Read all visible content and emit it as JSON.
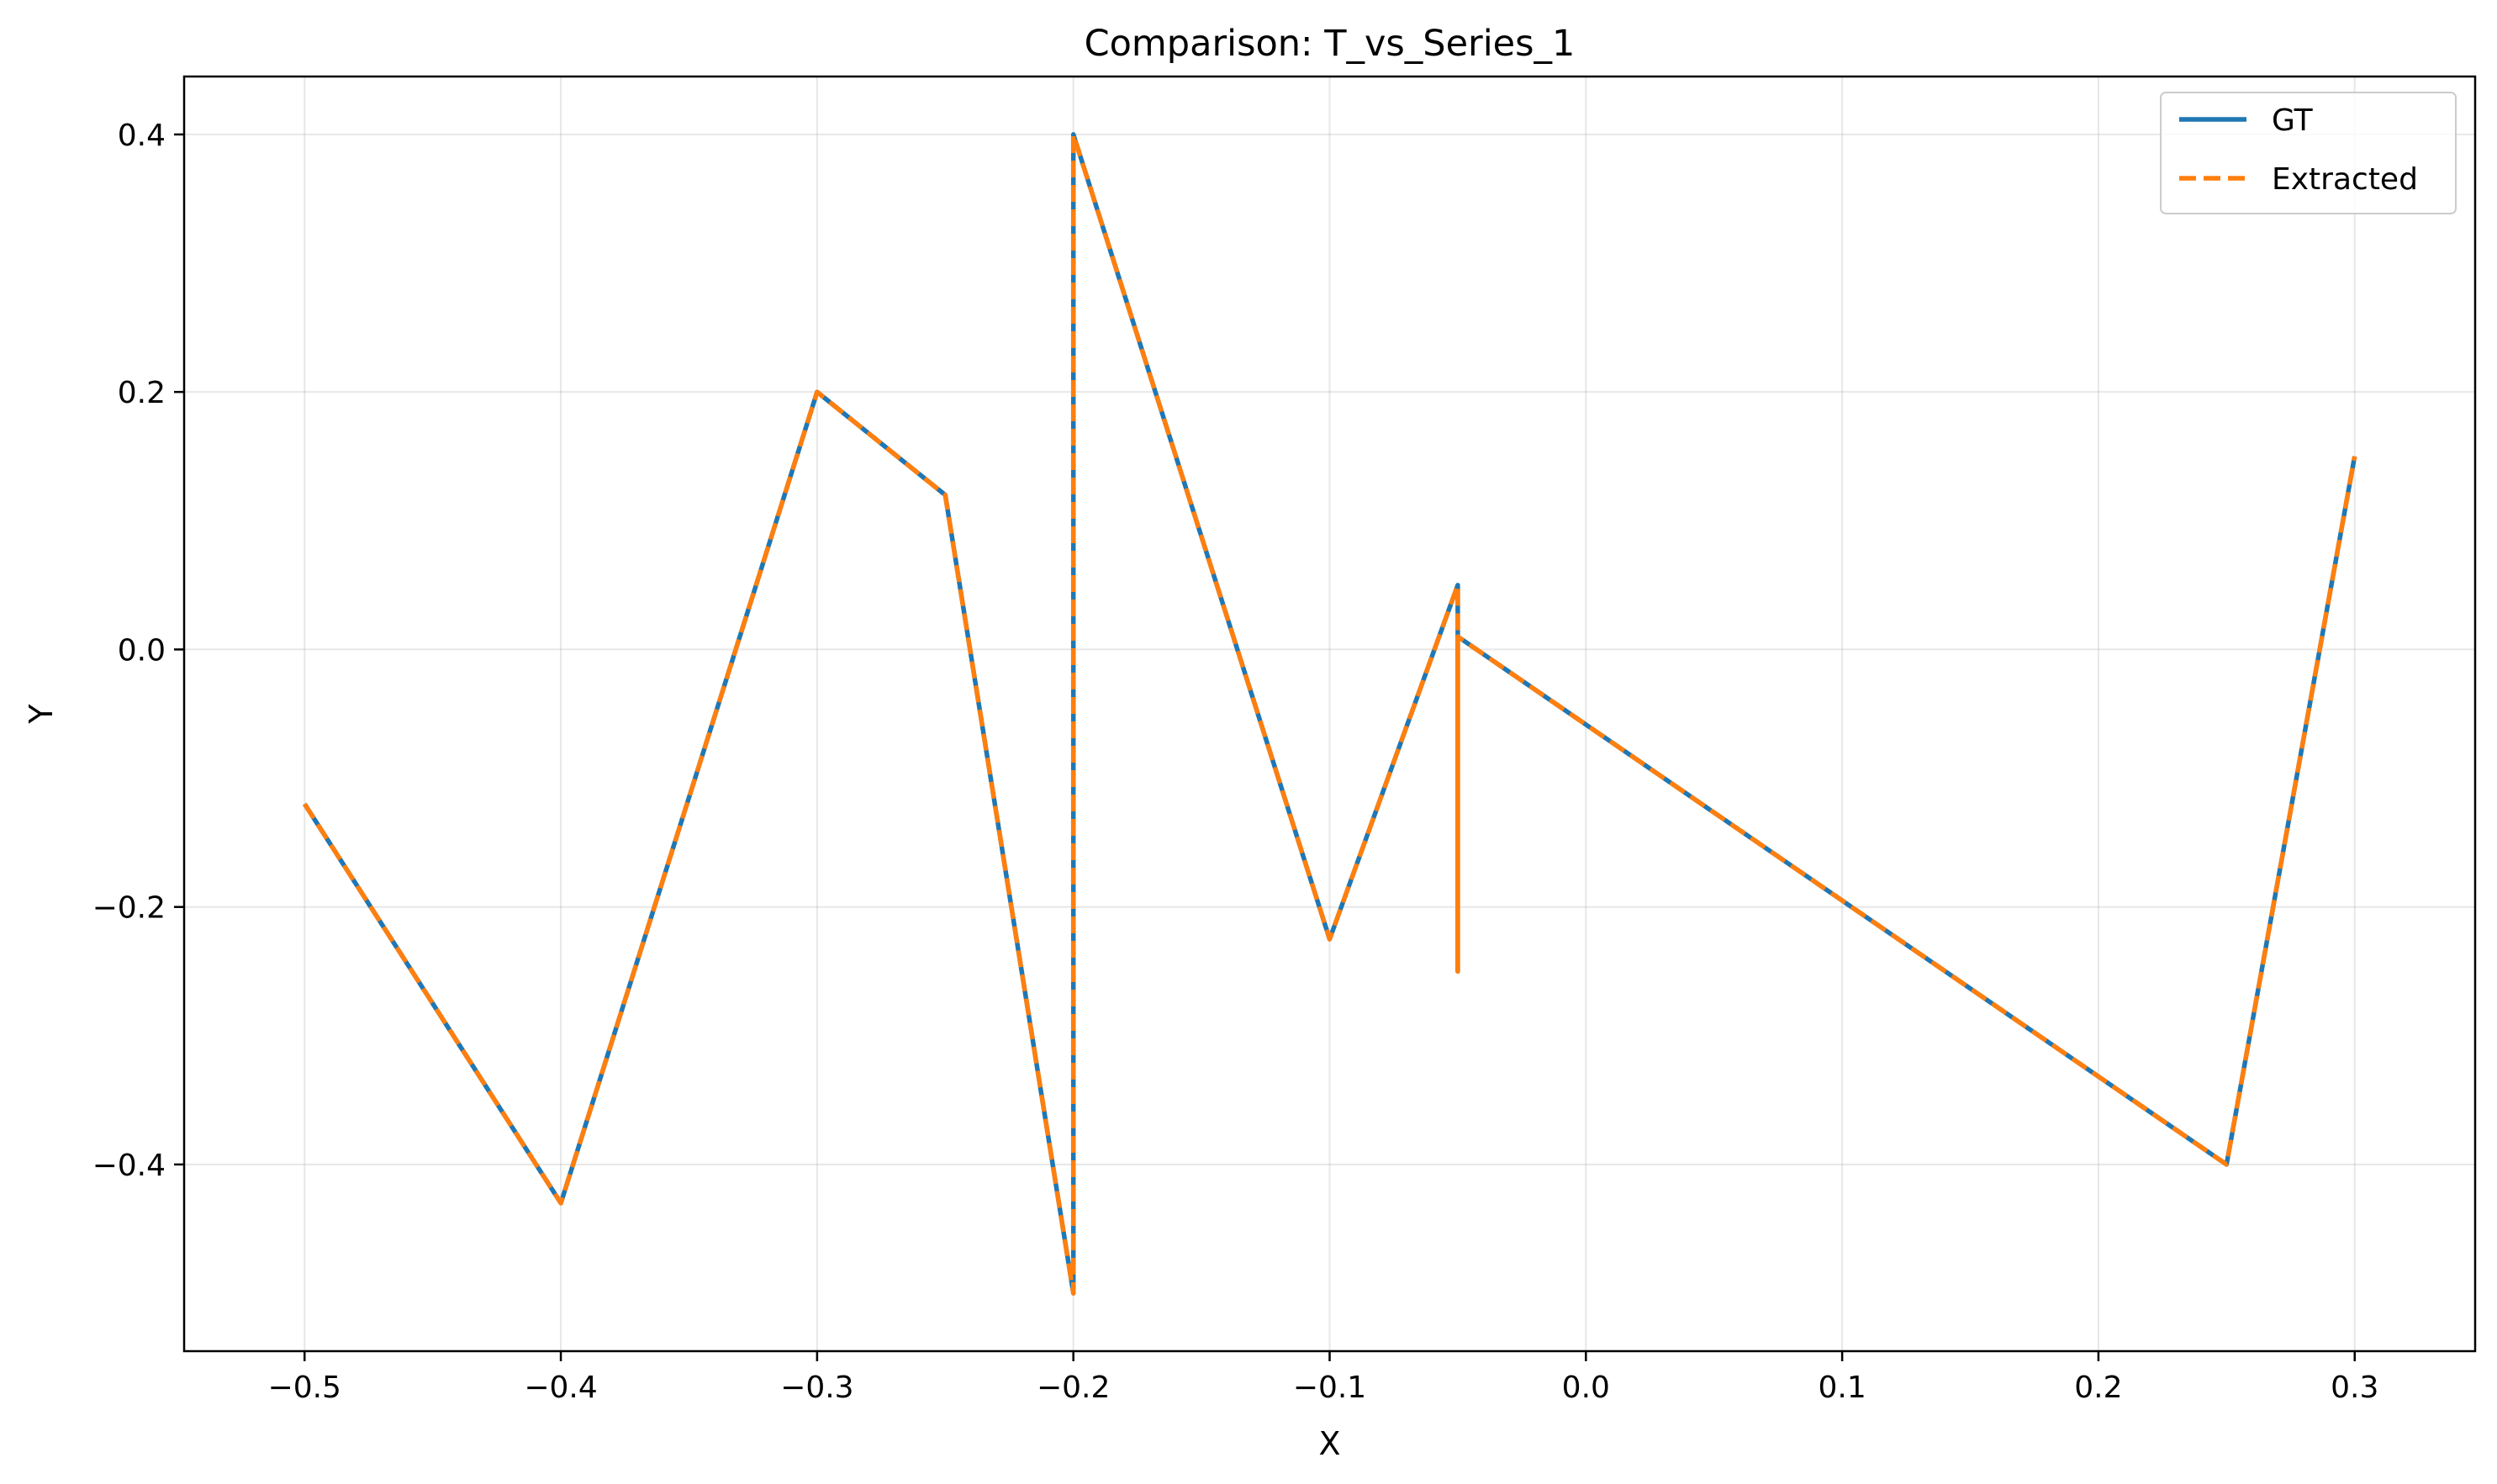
{
  "chart_data": {
    "type": "line",
    "title": "Comparison: T_vs_Series_1",
    "xlabel": "X",
    "ylabel": "Y",
    "xlim": [
      -0.547,
      0.347
    ],
    "ylim": [
      -0.545,
      0.445
    ],
    "xticks": [
      {
        "value": -0.5,
        "label": "−0.5"
      },
      {
        "value": -0.4,
        "label": "−0.4"
      },
      {
        "value": -0.3,
        "label": "−0.3"
      },
      {
        "value": -0.2,
        "label": "−0.2"
      },
      {
        "value": -0.1,
        "label": "−0.1"
      },
      {
        "value": 0.0,
        "label": "0.0"
      },
      {
        "value": 0.1,
        "label": "0.1"
      },
      {
        "value": 0.2,
        "label": "0.2"
      },
      {
        "value": 0.3,
        "label": "0.3"
      }
    ],
    "yticks": [
      {
        "value": -0.4,
        "label": "−0.4"
      },
      {
        "value": -0.2,
        "label": "−0.2"
      },
      {
        "value": 0.0,
        "label": "0.0"
      },
      {
        "value": 0.2,
        "label": "0.2"
      },
      {
        "value": 0.4,
        "label": "0.4"
      }
    ],
    "grid": true,
    "legend_position": "top-right",
    "series": [
      {
        "name": "GT",
        "color": "#1f77b4",
        "style": "solid",
        "x": [
          -0.5,
          -0.4,
          -0.3,
          -0.25,
          -0.2,
          -0.2,
          -0.1,
          -0.05,
          -0.05,
          -0.05,
          0.25,
          0.3
        ],
        "y": [
          -0.12,
          -0.43,
          0.2,
          0.12,
          -0.5,
          0.4,
          -0.225,
          0.05,
          -0.25,
          0.01,
          -0.4,
          0.15
        ]
      },
      {
        "name": "Extracted",
        "color": "#ff7f0e",
        "style": "dashed",
        "x": [
          -0.5,
          -0.4,
          -0.3,
          -0.25,
          -0.2,
          -0.2,
          -0.1,
          -0.05,
          -0.05,
          -0.05,
          0.25,
          0.3
        ],
        "y": [
          -0.12,
          -0.43,
          0.2,
          0.12,
          -0.5,
          0.4,
          -0.225,
          0.05,
          -0.25,
          0.01,
          -0.4,
          0.15
        ]
      }
    ]
  }
}
